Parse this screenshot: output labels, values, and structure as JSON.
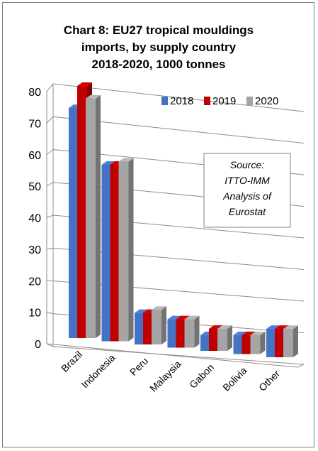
{
  "chart_data": {
    "type": "bar",
    "title_lines": [
      "Chart 8: EU27 tropical mouldings",
      "imports, by supply country",
      "2018-2020, 1000 tonnes"
    ],
    "xlabel": "",
    "ylabel": "",
    "ylim": [
      0,
      80
    ],
    "yticks": [
      0,
      10,
      20,
      30,
      40,
      50,
      60,
      70,
      80
    ],
    "categories": [
      "Brazil",
      "Indonesia",
      "Peru",
      "Malaysia",
      "Gabon",
      "Bolivia",
      "Other"
    ],
    "series": [
      {
        "name": "2018",
        "color": "#4472c4",
        "values": [
          73,
          56,
          10,
          9,
          5,
          6,
          9
        ]
      },
      {
        "name": "2019",
        "color": "#c00000",
        "values": [
          80,
          56,
          10,
          9,
          7,
          6,
          9
        ]
      },
      {
        "name": "2020",
        "color": "#a5a5a5",
        "values": [
          76,
          57,
          11,
          9,
          7,
          6,
          9
        ]
      }
    ],
    "grid": true,
    "legend": "top-right",
    "style": "3d-clustered-columns",
    "annotation": [
      "Source:",
      "ITTO-IMM",
      "Analysis of",
      "Eurostat"
    ]
  }
}
